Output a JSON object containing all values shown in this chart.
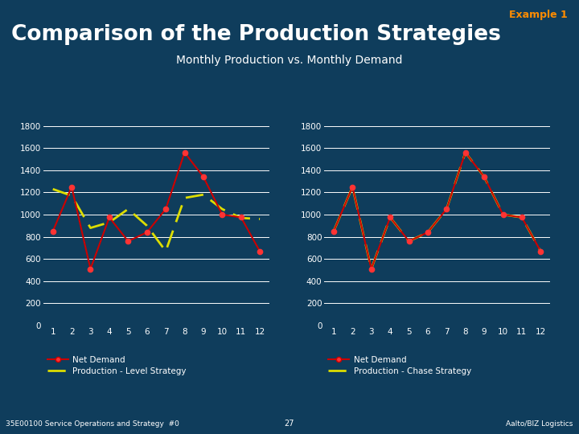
{
  "title": "Comparison of the Production Strategies",
  "subtitle": "Monthly Production vs. Monthly Demand",
  "example_label": "Example 1",
  "footer_left": "35E00100 Service Operations and Strategy  #0",
  "footer_center": "27",
  "footer_right": "Aalto/BIZ Logistics",
  "months": [
    1,
    2,
    3,
    4,
    5,
    6,
    7,
    8,
    9,
    10,
    11,
    12
  ],
  "net_demand": [
    850,
    1250,
    510,
    975,
    760,
    840,
    1050,
    1560,
    1340,
    1000,
    975,
    670
  ],
  "level_strategy": [
    1230,
    1170,
    880,
    930,
    1050,
    900,
    670,
    1150,
    1180,
    1050,
    970,
    960
  ],
  "chase_strategy": [
    850,
    1250,
    510,
    975,
    760,
    840,
    1050,
    1560,
    1340,
    1000,
    975,
    670
  ],
  "bg_color": "#0f3d5c",
  "plot_bg_color": "#0f3d5c",
  "title_color": "#ffffff",
  "subtitle_color": "#ffffff",
  "example_color": "#ff8c00",
  "footer_color": "#ffffff",
  "axis_color": "#ffffff",
  "demand_line_color": "#cc0000",
  "demand_marker_color": "#ff3333",
  "level_line_color": "#dddd00",
  "chase_line_color": "#dddd00",
  "ylim": [
    0,
    1800
  ],
  "yticks": [
    0,
    200,
    400,
    600,
    800,
    1000,
    1200,
    1400,
    1600,
    1800
  ],
  "footer_bar_color": "#2e7d32",
  "legend_demand": "Net Demand",
  "legend_level": "Production - Level Strategy",
  "legend_chase": "Production - Chase Strategy"
}
